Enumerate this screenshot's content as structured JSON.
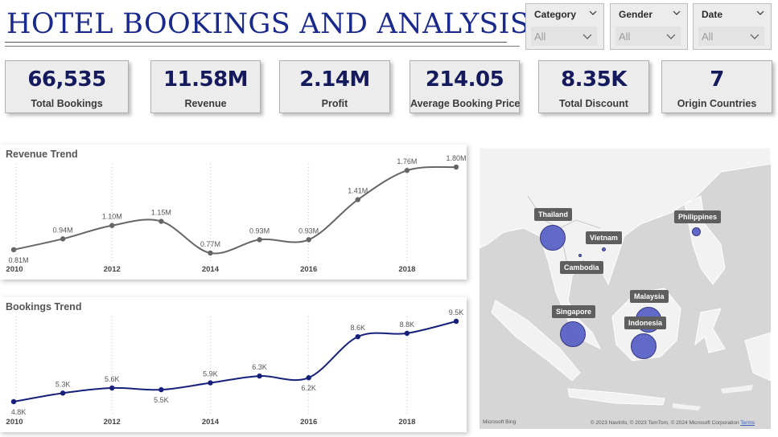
{
  "header": {
    "title": "HOTEL BOOKINGS AND ANALYSIS"
  },
  "slicers": [
    {
      "label": "Category",
      "value": "All"
    },
    {
      "label": "Gender",
      "value": "All"
    },
    {
      "label": "Date",
      "value": "All"
    }
  ],
  "kpis": [
    {
      "value": "66,535",
      "label": "Total Bookings"
    },
    {
      "value": "11.58M",
      "label": "Revenue"
    },
    {
      "value": "2.14M",
      "label": "Profit"
    },
    {
      "value": "214.05",
      "label": "Average Booking Price"
    },
    {
      "value": "8.35K",
      "label": "Total Discount"
    },
    {
      "value": "7",
      "label": "Origin Countries"
    }
  ],
  "chart_data": [
    {
      "type": "line",
      "title": "Revenue Trend",
      "x": [
        2010,
        2011,
        2012,
        2013,
        2014,
        2015,
        2016,
        2017,
        2018,
        2019
      ],
      "values": [
        0.81,
        0.94,
        1.1,
        1.15,
        0.77,
        0.93,
        0.93,
        1.41,
        1.76,
        1.8
      ],
      "data_labels": [
        "0.81M",
        "0.94M",
        "1.10M",
        "1.15M",
        "0.77M",
        "0.93M",
        "0.93M",
        "1.41M",
        "1.76M",
        "1.80M"
      ],
      "x_ticks": [
        "2010",
        "2012",
        "2014",
        "2016",
        "2018"
      ],
      "line_color": "#666666",
      "grid": "vertical-dotted"
    },
    {
      "type": "line",
      "title": "Bookings Trend",
      "x": [
        2010,
        2011,
        2012,
        2013,
        2014,
        2015,
        2016,
        2017,
        2018,
        2019
      ],
      "values": [
        4.8,
        5.3,
        5.6,
        5.5,
        5.9,
        6.3,
        6.2,
        8.6,
        8.8,
        9.5
      ],
      "data_labels": [
        "4.8K",
        "5.3K",
        "5.6K",
        "5.5K",
        "5.9K",
        "6.3K",
        "6.2K",
        "8.6K",
        "8.8K",
        "9.5K"
      ],
      "x_ticks": [
        "2010",
        "2012",
        "2014",
        "2016",
        "2018"
      ],
      "line_color": "#16207a",
      "grid": "vertical-dotted"
    }
  ],
  "map": {
    "locations": [
      {
        "name": "Thailand"
      },
      {
        "name": "Vietnam"
      },
      {
        "name": "Cambodia"
      },
      {
        "name": "Philippines"
      },
      {
        "name": "Malaysia"
      },
      {
        "name": "Singapore"
      },
      {
        "name": "Indonesia"
      }
    ],
    "attribution": "© 2023 NavInfo, © 2023 TomTom, © 2024 Microsoft Corporation",
    "terms": "Terms",
    "logo": "Microsoft Bing",
    "bubble_color": "#5b63c7"
  }
}
